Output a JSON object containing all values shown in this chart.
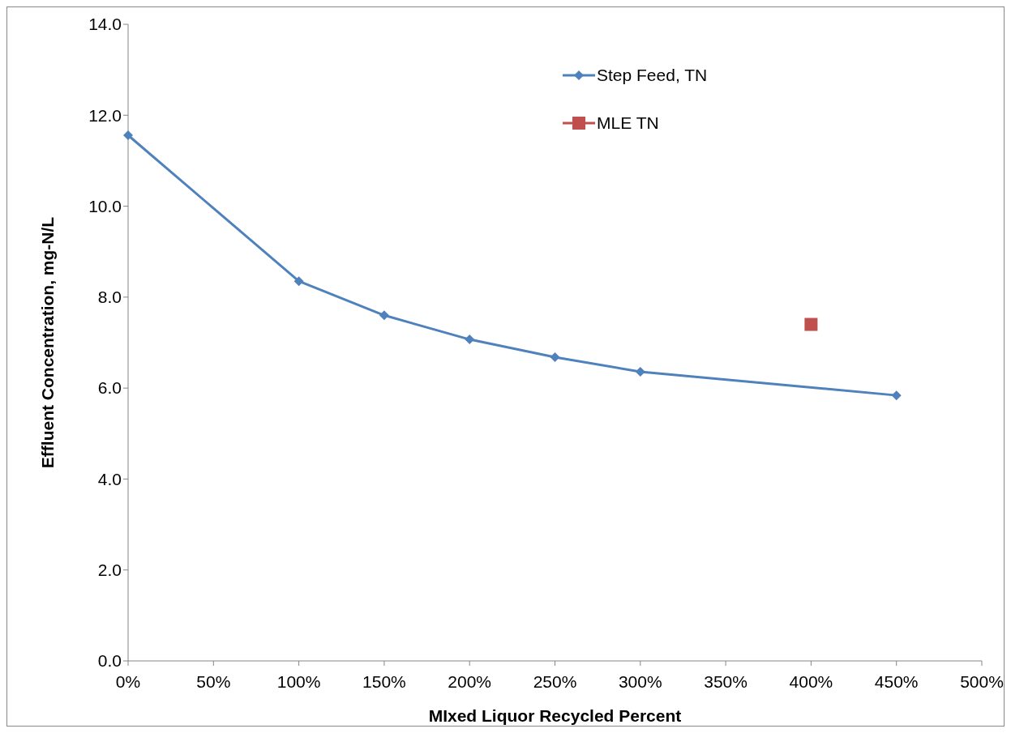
{
  "chart_data": {
    "type": "line",
    "xlabel": "MIxed Liquor Recycled Percent",
    "ylabel": "Effluent Concentration, mg-N/L",
    "xlim": [
      0,
      5
    ],
    "xticks": [
      {
        "value": 0,
        "label": "0%"
      },
      {
        "value": 0.5,
        "label": "50%"
      },
      {
        "value": 1,
        "label": "100%"
      },
      {
        "value": 1.5,
        "label": "150%"
      },
      {
        "value": 2,
        "label": "200%"
      },
      {
        "value": 2.5,
        "label": "250%"
      },
      {
        "value": 3,
        "label": "300%"
      },
      {
        "value": 3.5,
        "label": "350%"
      },
      {
        "value": 4,
        "label": "400%"
      },
      {
        "value": 4.5,
        "label": "450%"
      },
      {
        "value": 5,
        "label": "500%"
      }
    ],
    "ylim": [
      0,
      14
    ],
    "yticks": [
      {
        "value": 0,
        "label": "0.0"
      },
      {
        "value": 2,
        "label": "2.0"
      },
      {
        "value": 4,
        "label": "4.0"
      },
      {
        "value": 6,
        "label": "6.0"
      },
      {
        "value": 8,
        "label": "8.0"
      },
      {
        "value": 10,
        "label": "10.0"
      },
      {
        "value": 12,
        "label": "12.0"
      },
      {
        "value": 14,
        "label": "14.0"
      }
    ],
    "grid": false,
    "legend": "top right",
    "series": [
      {
        "name": "Step Feed, TN",
        "color": "#4f81bd",
        "marker": "diamond",
        "x": [
          0,
          1,
          1.5,
          2,
          2.5,
          3,
          4.5
        ],
        "values": [
          11.56,
          8.35,
          7.6,
          7.07,
          6.68,
          6.36,
          5.84
        ]
      },
      {
        "name": "MLE TN",
        "color": "#c0504d",
        "marker": "square",
        "x": [
          4
        ],
        "values": [
          7.4
        ]
      }
    ]
  }
}
